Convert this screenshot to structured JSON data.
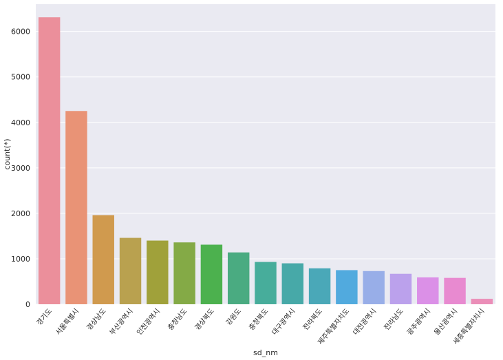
{
  "chart_data": {
    "type": "bar",
    "xlabel": "sd_nm",
    "ylabel": "count(*)",
    "ylim": [
      0,
      6600
    ],
    "yticks": [
      0,
      1000,
      2000,
      3000,
      4000,
      5000,
      6000
    ],
    "grid": true,
    "categories": [
      "경기도",
      "서울특별시",
      "경상남도",
      "부산광역시",
      "인천광역시",
      "충청남도",
      "경상북도",
      "강원도",
      "충청북도",
      "대구광역시",
      "전라북도",
      "제주특별자치도",
      "대전광역시",
      "전라남도",
      "광주광역시",
      "울산광역시",
      "세종특별자치시"
    ],
    "values": [
      6310,
      4250,
      1960,
      1460,
      1400,
      1360,
      1310,
      1140,
      930,
      900,
      790,
      750,
      730,
      670,
      590,
      580,
      120
    ],
    "colors": [
      "#eb8f9b",
      "#e99376",
      "#d09a4e",
      "#b9a14f",
      "#a0a13a",
      "#84aa46",
      "#4cb14e",
      "#4aab81",
      "#47ad9b",
      "#47a9a8",
      "#4aa8b8",
      "#51aade",
      "#98aee8",
      "#bba1ec",
      "#db90e7",
      "#e88ad0",
      "#eb8eb8"
    ],
    "background": "#eaeaf2",
    "grid_color": "#ffffff"
  }
}
